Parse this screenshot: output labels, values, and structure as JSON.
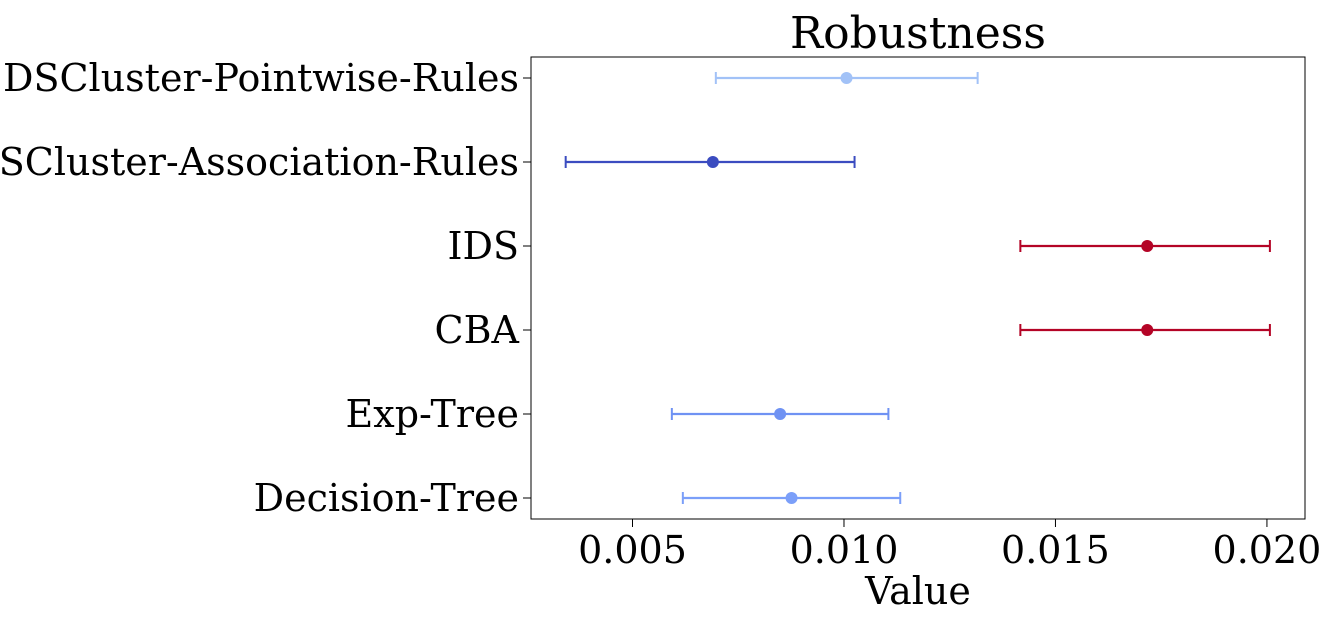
{
  "chart_data": {
    "type": "errorbar",
    "orientation": "horizontal",
    "title": "Robustness",
    "xlabel": "Value",
    "ylabel": "",
    "xlim": [
      0.0026,
      0.0209
    ],
    "xticks": [
      0.005,
      0.01,
      0.015,
      0.02
    ],
    "xtick_labels": [
      "0.005",
      "0.010",
      "0.015",
      "0.020"
    ],
    "grid": false,
    "categories": [
      "DSCluster-Pointwise-Rules",
      "DSCluster-Association-Rules",
      "IDS",
      "CBA",
      "Exp-Tree",
      "Decision-Tree"
    ],
    "series": [
      {
        "values": [
          0.01006,
          0.0069,
          0.01717,
          0.01717,
          0.00849,
          0.00876
        ],
        "lower": [
          0.00697,
          0.00342,
          0.01417,
          0.01417,
          0.00593,
          0.00619
        ],
        "upper": [
          0.01316,
          0.01025,
          0.02007,
          0.02007,
          0.01105,
          0.01133
        ],
        "colors": [
          "#a2c2f7",
          "#3b4cc0",
          "#b40426",
          "#b40426",
          "#6f92f3",
          "#7b9ff9"
        ]
      }
    ]
  }
}
